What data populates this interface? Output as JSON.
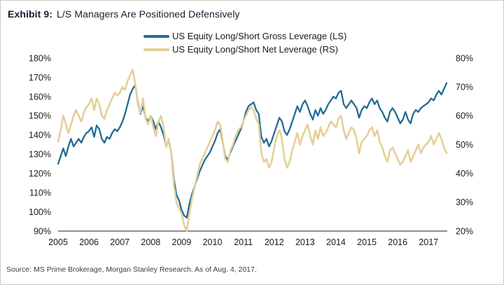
{
  "title": {
    "label": "Exhibit 9:",
    "text": "L/S Managers Are Positioned Defensively"
  },
  "source": "Source: MS Prime Brokerage, Morgan Stanley Research. As of Aug. 4, 2017.",
  "legend": [
    {
      "label": "US Equity Long/Short Gross Leverage (LS)",
      "color": "#226c94"
    },
    {
      "label": "US Equity Long/Short Net Leverage (RS)",
      "color": "#e4cf97"
    }
  ],
  "chart_data": {
    "type": "line",
    "title": "Exhibit 9: L/S Managers Are Positioned Defensively",
    "x_unit": "month",
    "x_start": "2005-01",
    "x_end": "2017-08",
    "x_tick_labels": [
      "2005",
      "2006",
      "2007",
      "2008",
      "2009",
      "2010",
      "2011",
      "2012",
      "2013",
      "2014",
      "2015",
      "2016",
      "2017"
    ],
    "left_axis": {
      "min": 90,
      "max": 180,
      "step": 10,
      "tick_labels": [
        "180%",
        "170%",
        "160%",
        "150%",
        "140%",
        "130%",
        "120%",
        "110%",
        "100%",
        "90%"
      ]
    },
    "right_axis": {
      "min": 20,
      "max": 80,
      "step": 10,
      "tick_labels": [
        "80%",
        "70%",
        "60%",
        "50%",
        "40%",
        "30%",
        "20%"
      ]
    },
    "grid": false,
    "legend_position": "top-center",
    "series": [
      {
        "name": "US Equity Long/Short Gross Leverage (LS)",
        "axis": "left",
        "color": "#226c94",
        "stroke_width": 2.3,
        "values": [
          125,
          129,
          133,
          129,
          134,
          138,
          134,
          136,
          138,
          136,
          139,
          141,
          142,
          144,
          139,
          145,
          143,
          138,
          136,
          139,
          138,
          141,
          143,
          142,
          144,
          147,
          151,
          156,
          161,
          164,
          166,
          157,
          151,
          155,
          149,
          147,
          150,
          147,
          143,
          147,
          144,
          140,
          134,
          137,
          131,
          117,
          109,
          106,
          101,
          98,
          97,
          104,
          109,
          113,
          117,
          121,
          124,
          127,
          129,
          131,
          134,
          137,
          141,
          143,
          136,
          129,
          127,
          131,
          134,
          137,
          140,
          143,
          147,
          152,
          155,
          156,
          157,
          153,
          151,
          139,
          136,
          138,
          134,
          137,
          141,
          145,
          149,
          147,
          142,
          140,
          143,
          147,
          151,
          155,
          152,
          156,
          158,
          155,
          151,
          148,
          153,
          150,
          154,
          151,
          153,
          156,
          158,
          160,
          159,
          162,
          163,
          156,
          154,
          156,
          158,
          156,
          154,
          149,
          153,
          155,
          154,
          157,
          159,
          156,
          158,
          154,
          152,
          149,
          147,
          152,
          154,
          152,
          149,
          146,
          148,
          152,
          148,
          146,
          151,
          153,
          152,
          154,
          155,
          156,
          157,
          159,
          158,
          161,
          163,
          161,
          164,
          167
        ]
      },
      {
        "name": "US Equity Long/Short Net Leverage (RS)",
        "axis": "right",
        "color": "#e4cf97",
        "stroke_width": 2.6,
        "values": [
          51,
          55,
          60,
          57,
          54,
          57,
          60,
          62,
          60,
          58,
          61,
          63,
          64,
          66,
          62,
          66,
          64,
          60,
          59,
          62,
          64,
          66,
          68,
          67,
          68,
          70,
          69,
          72,
          74,
          76,
          71,
          64,
          61,
          66,
          59,
          57,
          60,
          56,
          53,
          58,
          60,
          56,
          49,
          52,
          47,
          36,
          30,
          28,
          26,
          22,
          20,
          26,
          31,
          35,
          39,
          43,
          45,
          47,
          49,
          51,
          53,
          55,
          58,
          57,
          51,
          45,
          44,
          48,
          50,
          53,
          55,
          56,
          58,
          60,
          62,
          63,
          62,
          59,
          57,
          47,
          44,
          45,
          42,
          44,
          49,
          53,
          55,
          52,
          45,
          42,
          44,
          48,
          51,
          54,
          50,
          53,
          55,
          57,
          53,
          50,
          55,
          52,
          56,
          53,
          54,
          56,
          58,
          57,
          56,
          59,
          60,
          55,
          52,
          54,
          56,
          55,
          52,
          47,
          51,
          52,
          53,
          55,
          56,
          53,
          55,
          51,
          49,
          46,
          44,
          48,
          49,
          47,
          45,
          43,
          44,
          46,
          48,
          44,
          46,
          48,
          50,
          47,
          49,
          50,
          51,
          53,
          50,
          52,
          54,
          52,
          49,
          47
        ]
      }
    ]
  }
}
